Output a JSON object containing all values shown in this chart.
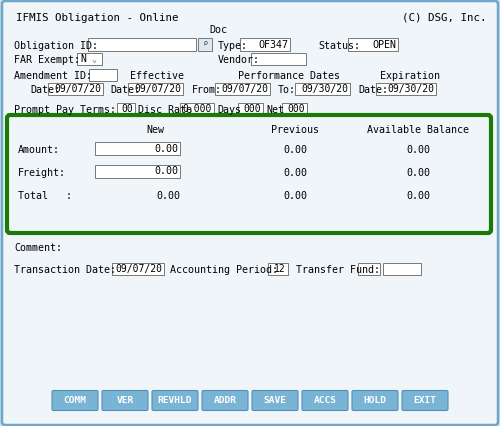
{
  "title_left": "IFMIS Obligation - Online",
  "title_right": "(C) DSG, Inc.",
  "doc_label": "Doc",
  "obligation_id_label": "Obligation ID:",
  "doc_type_label": "Type:",
  "doc_type_value": "OF347",
  "status_label": "Status:",
  "status_value": "OPEN",
  "far_exempt_label": "FAR Exempt:",
  "far_exempt_value": "N",
  "vendor_label": "Vendor:",
  "amendment_id_label": "Amendment ID:",
  "effective_label": "Effective",
  "effective_date_label": "Date:",
  "effective_date_value": "09/07/20",
  "date_label": "Date:",
  "date_value": "09/07/20",
  "perf_dates_label": "Performance Dates",
  "perf_from_label": "From:",
  "perf_from_value": "09/07/20",
  "perf_to_label": "To:",
  "perf_to_value": "09/30/20",
  "expiration_label": "Expiration",
  "expiration_date_label": "Date:",
  "expiration_date_value": "09/30/20",
  "prompt_pay_label": "Prompt Pay Terms:",
  "prompt_pay_value": "00",
  "disc_rate_label": "Disc Rate",
  "disc_rate_value": "0.000",
  "days_label": "Days",
  "days_value": "000",
  "net_label": "Net",
  "net_value": "000",
  "col_new": "New",
  "col_previous": "Previous",
  "col_avail": "Available Balance",
  "row_amount": "Amount:",
  "row_freight": "Freight:",
  "row_total": "Total   :",
  "zero_val": "0.00",
  "comment_label": "Comment:",
  "trans_date_label": "Transaction Date:",
  "trans_date_value": "09/07/20",
  "acct_period_label": "Accounting Period:",
  "acct_period_value": "12",
  "transfer_fund_label": "Transfer Fund:",
  "buttons": [
    "COMM",
    "VER",
    "REVHLD",
    "ADDR",
    "SAVE",
    "ACCS",
    "HOLD",
    "EXIT"
  ],
  "bg_color": "#ccdded",
  "outer_border": "#6ea8c8",
  "green_border": "#1a7a05",
  "input_bg": "#ffffff",
  "button_bg": "#7ab4d4",
  "button_text": "#ffffff",
  "text_color": "#000000",
  "form_bg": "#f0f5fa"
}
